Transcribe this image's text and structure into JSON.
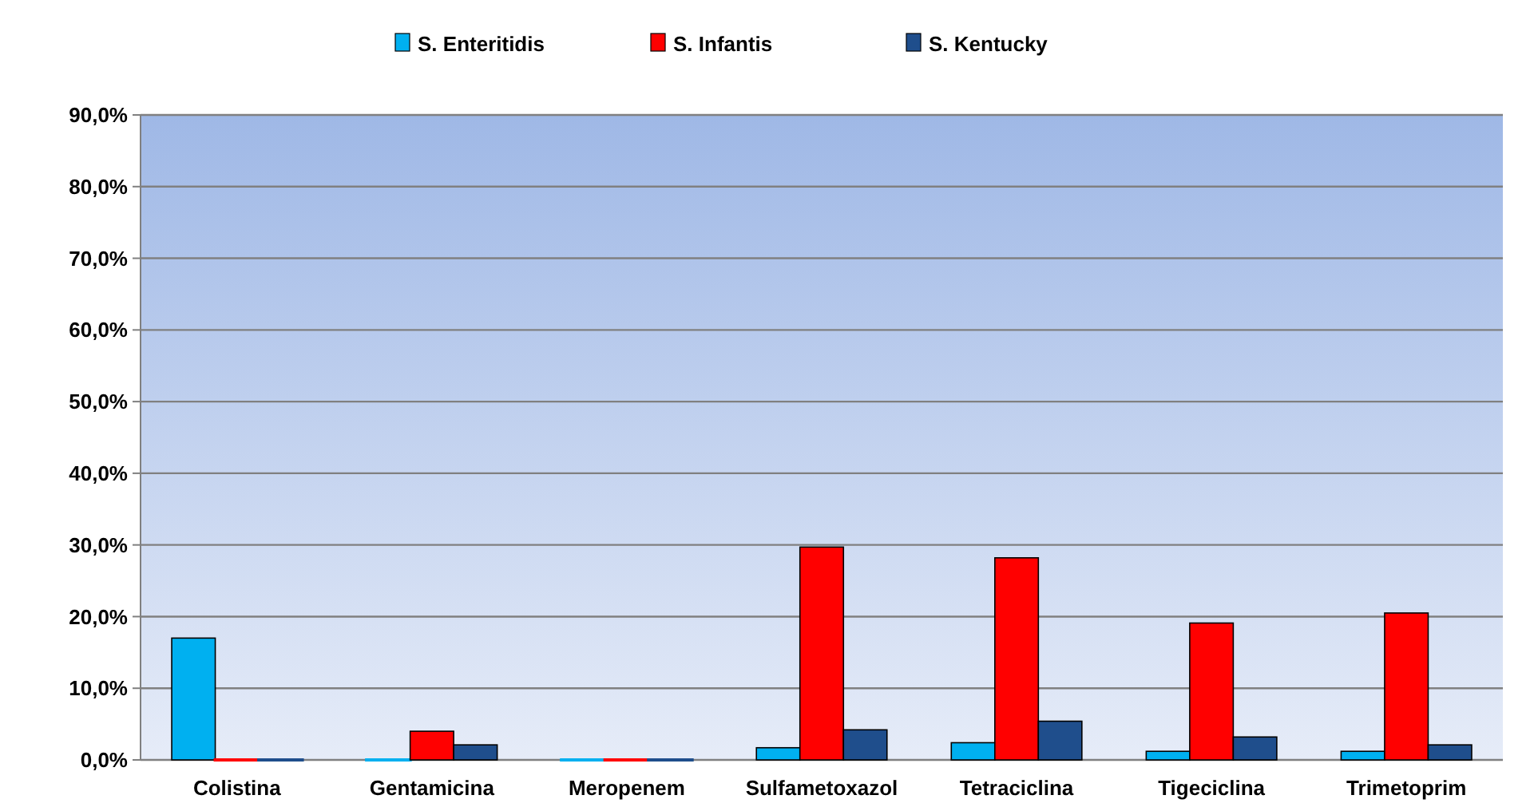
{
  "chart_data": {
    "type": "bar",
    "categories": [
      "Colistina",
      "Gentamicina",
      "Meropenem",
      "Sulfametoxazol",
      "Tetraciclina",
      "Tigeciclina",
      "Trimetoprim"
    ],
    "series": [
      {
        "name": "S. Enteritidis",
        "color": "#00b0f0",
        "values": [
          17.0,
          0,
          0,
          1.7,
          2.4,
          1.2,
          1.2
        ]
      },
      {
        "name": "S. Infantis",
        "color": "#ff0000",
        "values": [
          0,
          4.0,
          0,
          29.7,
          28.2,
          19.1,
          20.5
        ]
      },
      {
        "name": "S. Kentucky",
        "color": "#1f4e8c",
        "values": [
          0,
          2.1,
          0,
          4.2,
          5.4,
          3.2,
          2.1
        ]
      }
    ],
    "ylim": [
      0,
      90
    ],
    "yticks": [
      {
        "value": 0,
        "label": "0,0%"
      },
      {
        "value": 10,
        "label": "10,0%"
      },
      {
        "value": 20,
        "label": "20,0%"
      },
      {
        "value": 30,
        "label": "30,0%"
      },
      {
        "value": 40,
        "label": "40,0%"
      },
      {
        "value": 50,
        "label": "50,0%"
      },
      {
        "value": 60,
        "label": "60,0%"
      },
      {
        "value": 70,
        "label": "70,0%"
      },
      {
        "value": 80,
        "label": "80,0%"
      },
      {
        "value": 90,
        "label": "90,0%"
      }
    ],
    "grid": "y",
    "legend": "top"
  }
}
